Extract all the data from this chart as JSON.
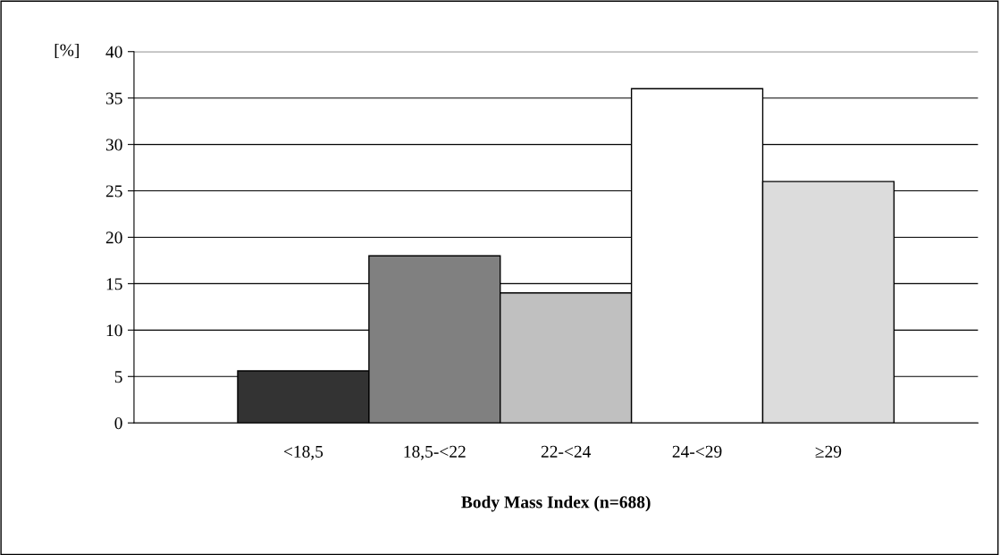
{
  "chart_data": {
    "type": "bar",
    "categories": [
      "<18,5",
      "18,5-<22",
      "22-<24",
      "24-<29",
      "≥29"
    ],
    "values": [
      5.6,
      18,
      14,
      36,
      26
    ],
    "colors": [
      "#333333",
      "#808080",
      "#c0c0c0",
      "#ffffff",
      "#dcdcdc"
    ],
    "xlabel": "Body Mass Index (n=688)",
    "ylabel": "[%]",
    "ylim": [
      0,
      40
    ],
    "yticks": [
      0,
      5,
      10,
      15,
      20,
      25,
      30,
      35,
      40
    ],
    "grid": "y",
    "legend": false
  }
}
